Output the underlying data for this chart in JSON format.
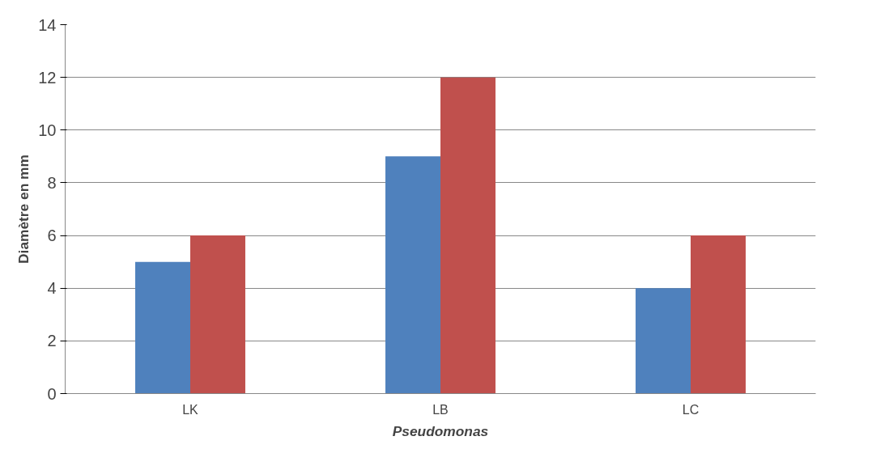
{
  "chart_data": {
    "type": "bar",
    "xlabel": "Pseudomonas",
    "ylabel": "Diamètre en mm",
    "categories": [
      "LK",
      "LB",
      "LC"
    ],
    "series": [
      {
        "color": "#4f81bd",
        "values": [
          5,
          9,
          4
        ]
      },
      {
        "color": "#c0504d",
        "values": [
          6,
          12,
          6
        ]
      }
    ],
    "ylim": [
      0,
      14
    ],
    "yticks": [
      0,
      2,
      4,
      6,
      8,
      10,
      12,
      14
    ],
    "grid": "y"
  }
}
